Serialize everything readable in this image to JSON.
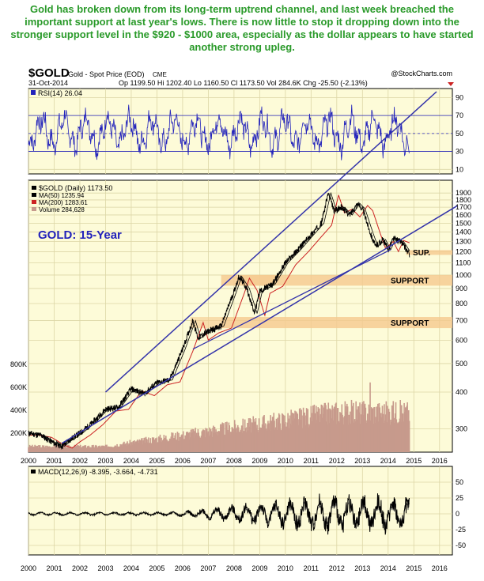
{
  "headline": "Gold has broken down from its long-term uptrend channel, and last week breached the important support at last year's lows. There is now little to stop it dropping down into the stronger support level in the $920 - $1000 area, especially as the dollar appears to have started another strong upleg.",
  "header": {
    "symbol": "$GOLD",
    "name": "Gold - Spot Price (EOD)",
    "exchange": "CME",
    "credit": "@StockCharts.com",
    "date": "31-Oct-2014",
    "quote": "Op 1199.50  Hi 1202.40  Lo 1160.50  Cl 1173.50  Vol 284.6K  Chg -25.50 (-2.13%)"
  },
  "colors": {
    "panel_bg": "#fdfbd8",
    "grid": "#dcd6a6",
    "price": "#000000",
    "ma50": "#000000",
    "ma200": "#cc2222",
    "volume": "#c79a8c",
    "rsi": "#2222bb",
    "trend": "#3333aa",
    "support_band": "#f5c98e",
    "annotation": "#2222bb",
    "headline": "#2a9a2a"
  },
  "chart_data": [
    {
      "type": "line",
      "panel": "rsi",
      "title": "RSI(14) 26.04",
      "series": [
        {
          "name": "RSI(14)",
          "last": 26.04
        }
      ],
      "y_ticks": [
        10,
        30,
        50,
        70,
        90
      ],
      "reference_lines": [
        30,
        70
      ],
      "ylim": [
        5,
        100
      ]
    },
    {
      "type": "line",
      "panel": "price",
      "title": "GOLD: 15-Year",
      "y_scale": "log",
      "ylim": [
        250,
        2100
      ],
      "y_ticks": [
        300,
        400,
        500,
        600,
        700,
        800,
        900,
        1000,
        1100,
        1200,
        1300,
        1400,
        1500,
        1600,
        1700,
        1800,
        1900
      ],
      "x_ticks": [
        "2000",
        "2001",
        "2002",
        "2003",
        "2004",
        "2005",
        "2006",
        "2007",
        "2008",
        "2009",
        "2010",
        "2011",
        "2012",
        "2013",
        "2014",
        "2015",
        "2016"
      ],
      "x_range": [
        2000.0,
        2016.5
      ],
      "legend": [
        "$GOLD (Daily) 1173.50",
        "MA(50) 1235.94",
        "MA(200) 1283.61",
        "Volume 284,628"
      ],
      "series": [
        {
          "name": "$GOLD (Daily)",
          "x": [
            2000.0,
            2000.5,
            2001.0,
            2001.3,
            2001.6,
            2002.0,
            2002.5,
            2003.0,
            2003.5,
            2004.0,
            2004.5,
            2005.0,
            2005.5,
            2006.0,
            2006.4,
            2006.6,
            2007.0,
            2007.5,
            2008.0,
            2008.2,
            2008.5,
            2008.8,
            2009.0,
            2009.5,
            2010.0,
            2010.5,
            2011.0,
            2011.4,
            2011.67,
            2011.9,
            2012.2,
            2012.5,
            2012.8,
            2013.0,
            2013.3,
            2013.5,
            2013.8,
            2014.0,
            2014.2,
            2014.5,
            2014.83
          ],
          "values": [
            290,
            285,
            268,
            262,
            275,
            290,
            315,
            350,
            355,
            410,
            395,
            430,
            440,
            560,
            700,
            610,
            645,
            670,
            880,
            990,
            900,
            740,
            880,
            930,
            1100,
            1220,
            1370,
            1500,
            1900,
            1650,
            1700,
            1600,
            1750,
            1680,
            1400,
            1250,
            1320,
            1220,
            1330,
            1300,
            1173.5
          ]
        },
        {
          "name": "MA(50)",
          "last": 1235.94
        },
        {
          "name": "MA(200)",
          "last": 1283.61
        }
      ],
      "support_zones": [
        {
          "label": "SUP.",
          "low": 1180,
          "high": 1215
        },
        {
          "label": "SUPPORT",
          "low": 920,
          "high": 1000
        },
        {
          "label": "SUPPORT",
          "low": 660,
          "high": 720
        }
      ],
      "volume_axis_ticks": [
        "200K",
        "400K",
        "600K",
        "800K"
      ],
      "volume_last": 284628
    },
    {
      "type": "line",
      "panel": "macd",
      "title": "MACD(12,26,9) -8.395, -3.664, -4.731",
      "series": [
        {
          "name": "MACD",
          "last": -8.395
        },
        {
          "name": "Signal",
          "last": -3.664
        },
        {
          "name": "Histogram",
          "last": -4.731
        }
      ],
      "y_ticks": [
        -50,
        -25,
        0,
        25,
        50
      ],
      "ylim": [
        -65,
        75
      ]
    }
  ],
  "labels": {
    "annotation": "GOLD: 15-Year",
    "sup_short": "SUP.",
    "support": "SUPPORT"
  }
}
